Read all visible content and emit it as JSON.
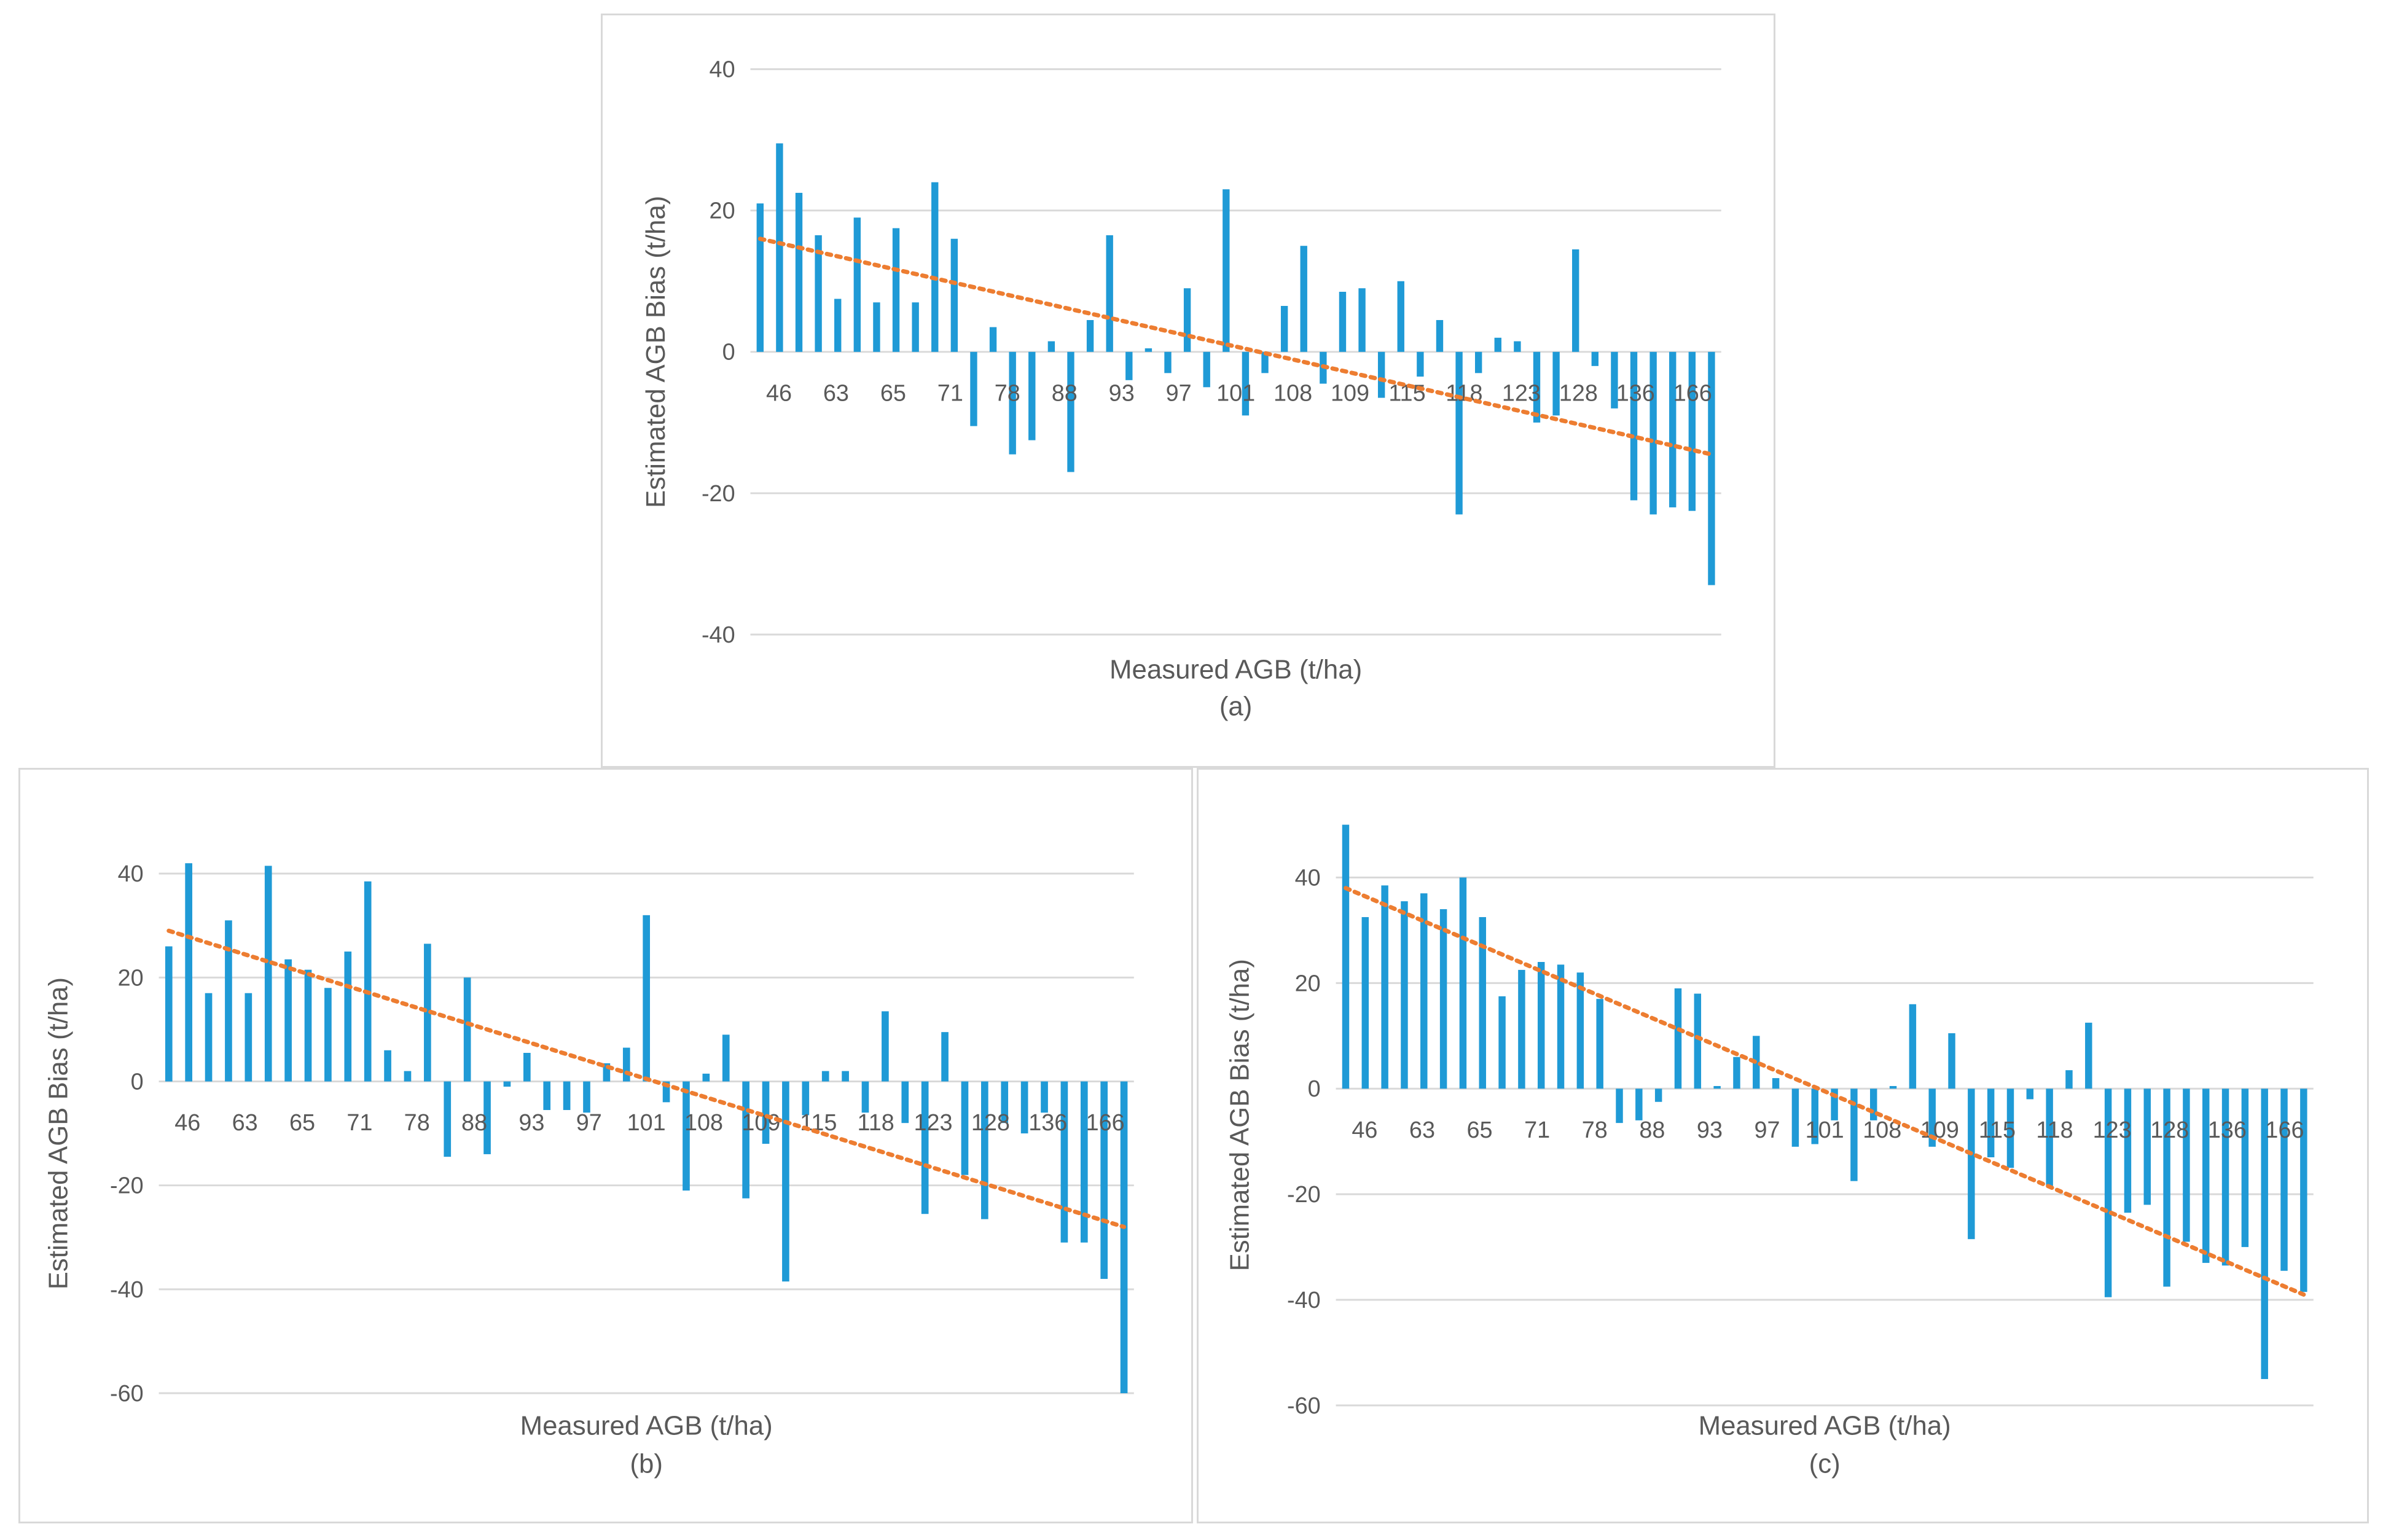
{
  "chart_data": [
    {
      "id": "a",
      "type": "bar",
      "panel_label": "(a)",
      "xlabel": "Measured AGB  (t/ha)",
      "ylabel": "Estimated AGB Bias (t/ha)",
      "ylim": [
        -40,
        40
      ],
      "yticks": [
        40,
        20,
        0,
        -20,
        -40
      ],
      "x_tick_labels": [
        "46",
        "63",
        "65",
        "71",
        "78",
        "88",
        "93",
        "97",
        "101",
        "108",
        "109",
        "115",
        "118",
        "123",
        "128",
        "136",
        "166"
      ],
      "values": [
        21,
        29.5,
        22.5,
        16.5,
        7.5,
        19,
        7,
        17.5,
        7,
        24,
        16,
        -10.5,
        3.5,
        -14.5,
        -12.5,
        1.5,
        -17,
        4.5,
        16.5,
        -4,
        0.5,
        -3,
        9,
        -5,
        23,
        -9,
        -3,
        6.5,
        15,
        -4.5,
        8.5,
        9,
        -6.5,
        10,
        -3.5,
        4.5,
        -23,
        -3,
        2,
        1.5,
        -10,
        -9,
        14.5,
        -2,
        -8,
        -21,
        -23,
        -22,
        -22.5,
        -33
      ],
      "trend": {
        "start": 16,
        "end": -14.5
      },
      "bar_color": "#1f9ad6",
      "trend_color": "#ed7d31"
    },
    {
      "id": "b",
      "type": "bar",
      "panel_label": "(b)",
      "xlabel": "Measured AGB  (t/ha)",
      "ylabel": "Estimated AGB Bias (t/ha)",
      "ylim": [
        -60,
        40
      ],
      "yticks": [
        40,
        20,
        0,
        -20,
        -40,
        -60
      ],
      "x_tick_labels": [
        "46",
        "63",
        "65",
        "71",
        "78",
        "88",
        "93",
        "97",
        "101",
        "108",
        "109",
        "115",
        "118",
        "123",
        "128",
        "136",
        "166"
      ],
      "values": [
        26,
        42,
        17,
        31,
        17,
        41.5,
        23.5,
        21.5,
        18,
        25,
        38.5,
        6,
        2,
        26.5,
        -14.5,
        20,
        -14,
        -1,
        5.5,
        -5.5,
        -5.5,
        -6,
        3.5,
        6.5,
        32,
        -4,
        -21,
        1.5,
        9,
        -22.5,
        -12,
        -38.5,
        -6.5,
        2,
        2,
        -6,
        13.5,
        -8,
        -25.5,
        9.5,
        -18,
        -26.5,
        -8,
        -10,
        -6,
        -31,
        -31,
        -38,
        -60
      ],
      "trend": {
        "start": 29,
        "end": -28
      },
      "bar_color": "#1f9ad6",
      "trend_color": "#ed7d31"
    },
    {
      "id": "c",
      "type": "bar",
      "panel_label": "(c)",
      "xlabel": "Measured AGB  (t/ha)",
      "ylabel": "Estimated AGB Bias (t/ha)",
      "ylim": [
        -60,
        50
      ],
      "yticks": [
        40,
        20,
        0,
        -20,
        -40,
        -60
      ],
      "x_tick_labels": [
        "46",
        "63",
        "65",
        "71",
        "78",
        "88",
        "93",
        "97",
        "101",
        "108",
        "109",
        "115",
        "118",
        "123",
        "128",
        "136",
        "166"
      ],
      "values": [
        50,
        32.5,
        38.5,
        35.5,
        37,
        34,
        40,
        32.5,
        17.5,
        22.5,
        24,
        23.5,
        22,
        17,
        -6.5,
        -6,
        -2.5,
        19,
        18,
        0.5,
        6,
        10,
        2,
        -11,
        -10.5,
        -6,
        -17.5,
        -6,
        0.5,
        16,
        -11,
        10.5,
        -28.5,
        -13,
        -15,
        -2,
        -18.5,
        3.5,
        12.5,
        -39.5,
        -23.5,
        -22,
        -37.5,
        -29,
        -33,
        -33.5,
        -30,
        -55,
        -34.5,
        -38.5
      ],
      "trend": {
        "start": 38,
        "end": -39
      },
      "bar_color": "#1f9ad6",
      "trend_color": "#ed7d31"
    }
  ]
}
